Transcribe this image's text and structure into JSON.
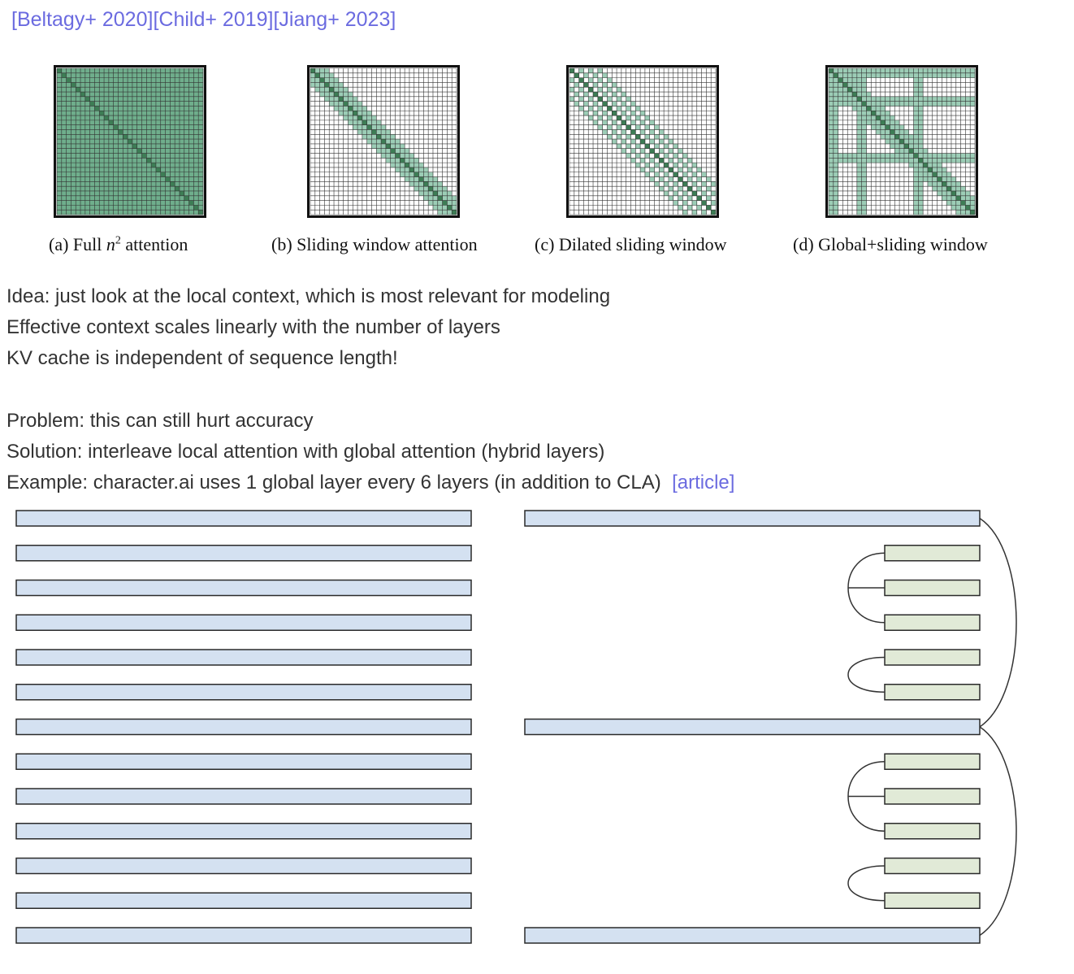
{
  "references": [
    {
      "label": "[Beltagy+ 2020]"
    },
    {
      "label": "[Child+ 2019]"
    },
    {
      "label": "[Jiang+ 2023]"
    }
  ],
  "patterns": [
    {
      "caption_prefix": "(a) Full ",
      "caption_math": "n",
      "caption_sup": "2",
      "caption_suffix": " attention",
      "kind": "full"
    },
    {
      "caption": "(b) Sliding window attention",
      "kind": "sliding"
    },
    {
      "caption": "(c) Dilated sliding window",
      "kind": "dilated"
    },
    {
      "caption": "(d) Global+sliding window",
      "kind": "global"
    }
  ],
  "text_block_1": [
    "Idea: just look at the local context, which is most relevant for modeling",
    "Effective context scales linearly with the number of layers",
    "KV cache is independent of sequence length!"
  ],
  "text_block_2": [
    "Problem: this can still hurt accuracy",
    "Solution: interleave local attention with global attention (hybrid layers)",
    "Example: character.ai uses 1 global layer every 6 layers (in addition to CLA)"
  ],
  "article_link": "[article]",
  "diagram": {
    "left_layers": 13,
    "right_layers": [
      "global",
      "local",
      "local",
      "local",
      "local",
      "local",
      "global",
      "local",
      "local",
      "local",
      "local",
      "local",
      "global"
    ],
    "colors": {
      "global": "#d4e1f1",
      "local": "#e1ead7",
      "border": "#2a2a2a",
      "matrix_light": "#9ccdb6",
      "matrix_dark": "#3d7d55",
      "matrix_full": "#6fae8c"
    }
  }
}
